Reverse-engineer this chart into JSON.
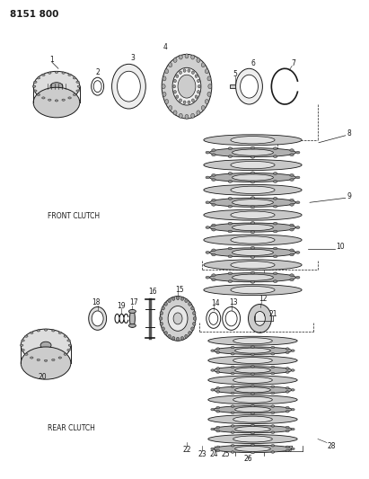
{
  "title": "8151 800",
  "bg": "#ffffff",
  "lc": "#1a1a1a",
  "gray_fill": "#cccccc",
  "gray_dark": "#888888",
  "gray_light": "#e8e8e8",
  "front_clutch_label": "FRONT CLUTCH",
  "rear_clutch_label": "REAR CLUTCH",
  "fig_width": 4.11,
  "fig_height": 5.33,
  "dpi": 100
}
